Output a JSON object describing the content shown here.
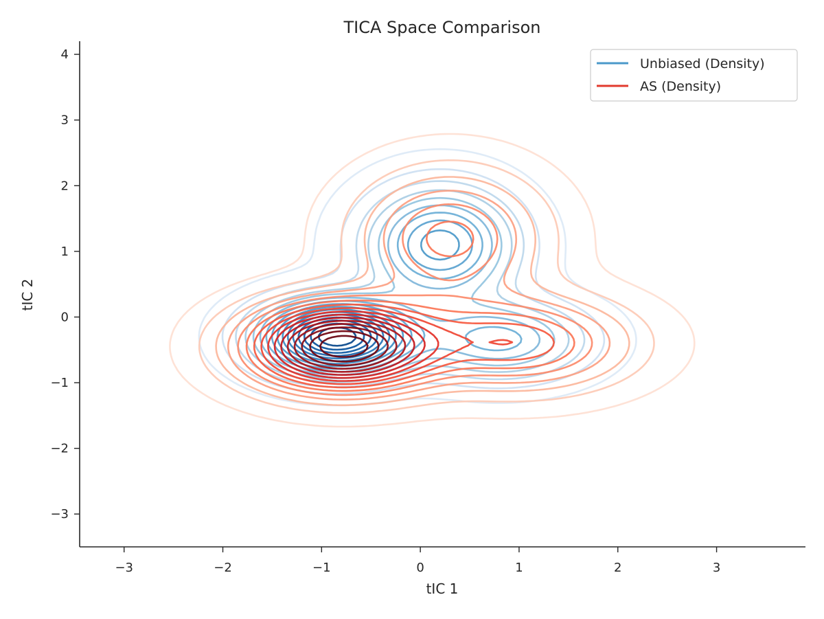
{
  "chart_data": {
    "type": "contour",
    "title": "TICA Space Comparison",
    "xlabel": "tIC 1",
    "ylabel": "tIC 2",
    "xlim": [
      -3.45,
      3.9
    ],
    "ylim": [
      -3.5,
      4.2
    ],
    "xticks": [
      -3,
      -2,
      -1,
      0,
      1,
      2,
      3
    ],
    "yticks": [
      -3,
      -2,
      -1,
      0,
      1,
      2,
      3,
      4
    ],
    "grid": false,
    "legend_position": "top-right",
    "series": [
      {
        "name": "Unbiased (Density)",
        "legend_color": "#4a98c9",
        "colormap": "Blues",
        "level_colors": [
          "#dce9f6",
          "#cde0f2",
          "#bcd7eb",
          "#a9cde4",
          "#94c4df",
          "#7fb6da",
          "#6aaed6",
          "#5aa2cf",
          "#4a98c9",
          "#3d8dc4",
          "#3182bd",
          "#2474b7",
          "#1966ad",
          "#105ba4",
          "#08519c",
          "#08468a"
        ],
        "components": [
          {
            "mu": [
              -0.85,
              -0.3
            ],
            "sigma": [
              0.48,
              0.36
            ],
            "weight": 1.0
          },
          {
            "mu": [
              0.2,
              1.1
            ],
            "sigma": [
              0.48,
              0.55
            ],
            "weight": 0.5
          },
          {
            "mu": [
              0.8,
              -0.35
            ],
            "sigma": [
              0.55,
              0.38
            ],
            "weight": 0.36
          }
        ]
      },
      {
        "name": "AS (Density)",
        "legend_color": "#e23a2e",
        "colormap": "Reds",
        "level_colors": [
          "#fee0d2",
          "#fdcab5",
          "#fcb69b",
          "#fca082",
          "#fc8a6a",
          "#fb7555",
          "#f6583e",
          "#ef4533",
          "#e32f27",
          "#d42020",
          "#c1161b",
          "#af1117",
          "#9b0d14",
          "#860811",
          "#70020d",
          "#67000d"
        ],
        "components": [
          {
            "mu": [
              -0.8,
              -0.45
            ],
            "sigma": [
              0.6,
              0.42
            ],
            "weight": 1.0
          },
          {
            "mu": [
              0.3,
              1.2
            ],
            "sigma": [
              0.6,
              0.65
            ],
            "weight": 0.3
          },
          {
            "mu": [
              1.0,
              -0.4
            ],
            "sigma": [
              0.7,
              0.45
            ],
            "weight": 0.38
          }
        ]
      }
    ]
  }
}
